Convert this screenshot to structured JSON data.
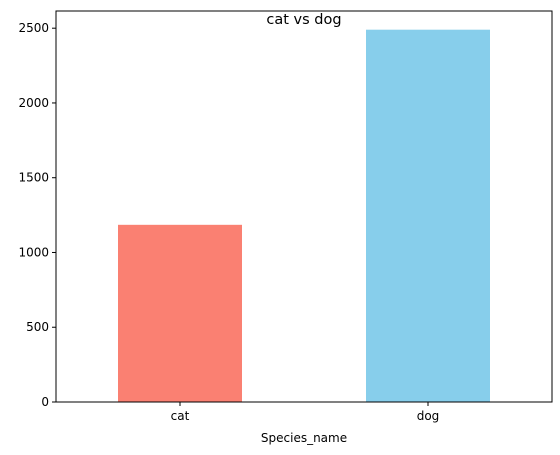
{
  "chart_data": {
    "type": "bar",
    "title": "cat vs dog",
    "xlabel": "Species_name",
    "ylabel": "",
    "categories": [
      "cat",
      "dog"
    ],
    "values": [
      1185,
      2490
    ],
    "colors": [
      "#fa8072",
      "#87ceeb"
    ],
    "ylim": [
      0,
      2615
    ],
    "yticks": [
      0,
      500,
      1000,
      1500,
      2000,
      2500
    ],
    "grid": false,
    "legend": false
  }
}
